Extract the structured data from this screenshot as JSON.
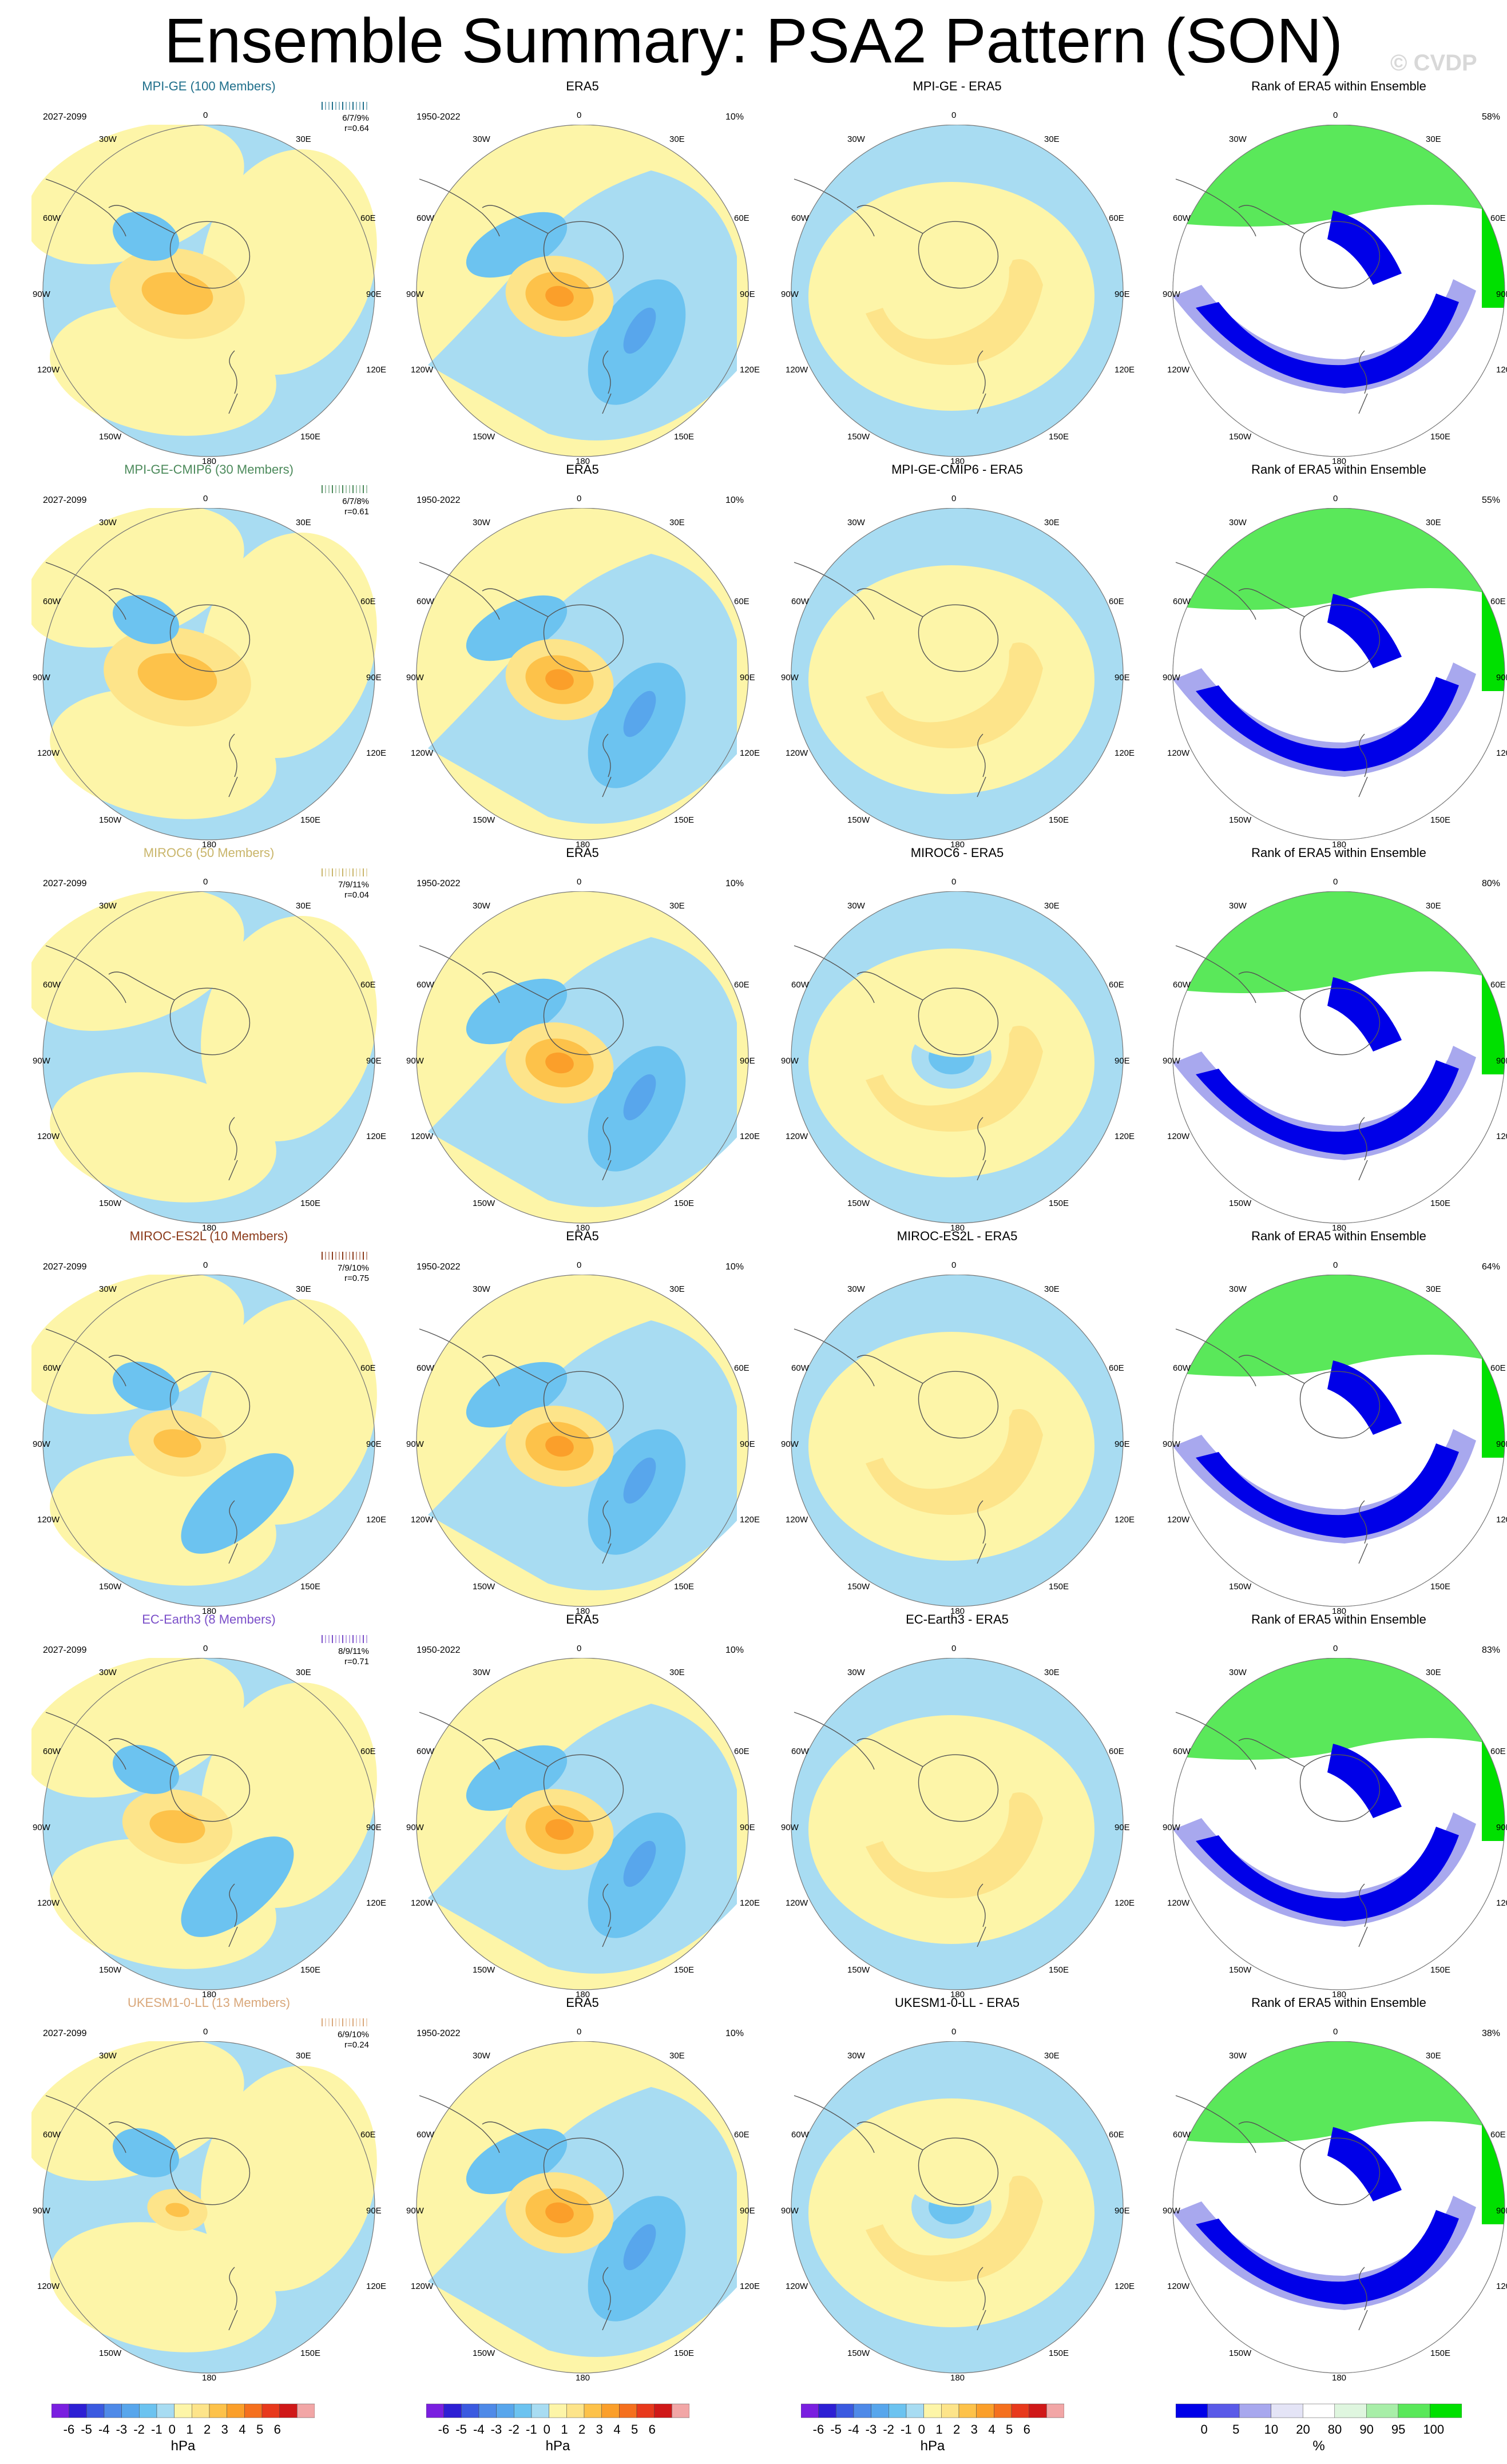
{
  "title": "Ensemble Summary: PSA2 Pattern (SON)",
  "watermark": "© CVDP",
  "lon_labels": {
    "top": "0",
    "bottom": "180",
    "tl": "30W",
    "tr": "30E",
    "ul": "60W",
    "ur": "60E",
    "ml": "90W",
    "mr": "90E",
    "ll": "120W",
    "lr": "120E",
    "bl": "150W",
    "br": "150E"
  },
  "rows": [
    {
      "model": "MPI-GE (100 Members)",
      "model_color": "#1f6f8b",
      "model_period": "2027-2099",
      "stats": "6/7/9%",
      "r": "r=0.64",
      "era5": "ERA5",
      "era5_period": "1950-2022",
      "era5_pct": "10%",
      "diff": "MPI-GE - ERA5",
      "rank": "Rank of ERA5 within Ensemble",
      "rank_pct": "58%"
    },
    {
      "model": "MPI-GE-CMIP6 (30 Members)",
      "model_color": "#4c8a5b",
      "model_period": "2027-2099",
      "stats": "6/7/8%",
      "r": "r=0.61",
      "era5": "ERA5",
      "era5_period": "1950-2022",
      "era5_pct": "10%",
      "diff": "MPI-GE-CMIP6 - ERA5",
      "rank": "Rank of ERA5 within Ensemble",
      "rank_pct": "55%"
    },
    {
      "model": "MIROC6 (50 Members)",
      "model_color": "#c9b56a",
      "model_period": "2027-2099",
      "stats": "7/9/11%",
      "r": "r=0.04",
      "era5": "ERA5",
      "era5_period": "1950-2022",
      "era5_pct": "10%",
      "diff": "MIROC6 - ERA5",
      "rank": "Rank of ERA5 within Ensemble",
      "rank_pct": "80%"
    },
    {
      "model": "MIROC-ES2L (10 Members)",
      "model_color": "#8b3a1a",
      "model_period": "2027-2099",
      "stats": "7/9/10%",
      "r": "r=0.75",
      "era5": "ERA5",
      "era5_period": "1950-2022",
      "era5_pct": "10%",
      "diff": "MIROC-ES2L - ERA5",
      "rank": "Rank of ERA5 within Ensemble",
      "rank_pct": "64%"
    },
    {
      "model": "EC-Earth3 (8 Members)",
      "model_color": "#7b4fc9",
      "model_period": "2027-2099",
      "stats": "8/9/11%",
      "r": "r=0.71",
      "era5": "ERA5",
      "era5_period": "1950-2022",
      "era5_pct": "10%",
      "diff": "EC-Earth3 - ERA5",
      "rank": "Rank of ERA5 within Ensemble",
      "rank_pct": "83%"
    },
    {
      "model": "UKESM1-0-LL (13 Members)",
      "model_color": "#d9a77a",
      "model_period": "2027-2099",
      "stats": "6/9/10%",
      "r": "r=0.24",
      "era5": "ERA5",
      "era5_period": "1950-2022",
      "era5_pct": "10%",
      "diff": "UKESM1-0-LL - ERA5",
      "rank": "Rank of ERA5 within Ensemble",
      "rank_pct": "38%"
    }
  ],
  "chart_data": {
    "type": "heatmap",
    "hpa_levels": [
      "-7",
      "-6",
      "-5",
      "-4",
      "-3",
      "-2",
      "-1",
      "0",
      "1",
      "2",
      "3",
      "4",
      "5",
      "6",
      "7"
    ],
    "hpa_unit": "hPa",
    "hpa_colors": [
      "#7a1fe0",
      "#2d1fd4",
      "#3b5ae0",
      "#4f8ae8",
      "#58a6ec",
      "#6cc3f0",
      "#a8dcf2",
      "#fdf5a8",
      "#fde48a",
      "#fdc24a",
      "#fb9f2a",
      "#f5701e",
      "#e8391c",
      "#d01818",
      "#f2a6a6"
    ],
    "rank_levels": [
      "0",
      "5",
      "10",
      "20",
      "80",
      "90",
      "95",
      "100"
    ],
    "rank_unit": "%",
    "rank_colors": [
      "#0000e8",
      "#5a5ae8",
      "#a8a8ee",
      "#e4e4f6",
      "#ffffff",
      "#dff6df",
      "#a8eea8",
      "#5ae85a",
      "#00e000"
    ]
  }
}
